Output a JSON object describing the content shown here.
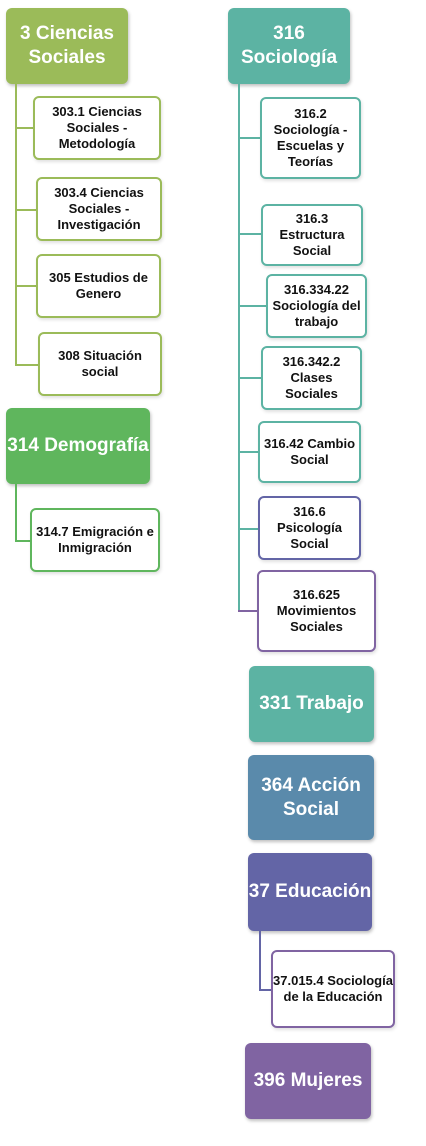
{
  "col_left": {
    "ciencias_sociales": {
      "label": "3 Ciencias Sociales",
      "children": [
        "303.1 Ciencias Sociales - Metodología",
        "303.4 Ciencias Sociales - Investigación",
        "305 Estudios de Genero",
        "308 Situación social"
      ]
    },
    "demografia": {
      "label": "314 Demografía",
      "children": [
        "314.7 Emigración e Inmigración"
      ]
    }
  },
  "col_right": {
    "sociologia": {
      "label": "316 Sociología",
      "children": [
        "316.2 Sociología - Escuelas y Teorías",
        "316.3 Estructura Social",
        "316.334.22 Sociología del trabajo",
        "316.342.2 Clases Sociales",
        "316.42 Cambio Social",
        "316.6 Psicología Social",
        "316.625 Movimientos Sociales"
      ]
    },
    "trabajo": {
      "label": "331 Trabajo"
    },
    "accion_social": {
      "label": "364 Acción Social"
    },
    "educacion": {
      "label": "37 Educación",
      "children": [
        "37.015.4 Sociología de la Educación"
      ]
    },
    "mujeres": {
      "label": "396 Mujeres"
    }
  },
  "colors": {
    "ciencias_sociales": "#9bbb59",
    "demografia": "#5fb65d",
    "sociologia": "#5cb3a3",
    "trabajo": "#5cb3a3",
    "accion_social": "#5a8aab",
    "educacion": "#6365a6",
    "mujeres": "#8064a2"
  }
}
